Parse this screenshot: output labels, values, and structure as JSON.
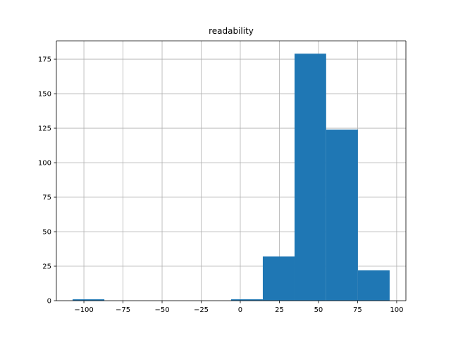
{
  "chart_data": {
    "type": "histogram",
    "title": "readability",
    "bins": [
      -107.2,
      -86.9,
      -66.7,
      -46.4,
      -26.1,
      -5.9,
      14.4,
      34.7,
      54.9,
      75.2,
      95.5
    ],
    "values": [
      1,
      0,
      0,
      0,
      0,
      1,
      32,
      179,
      124,
      22
    ],
    "color": "#1f77b4",
    "xlim": [
      -117.6,
      105.9
    ],
    "xticks": [
      {
        "value": -100,
        "label": "−100"
      },
      {
        "value": -75,
        "label": "−75"
      },
      {
        "value": -50,
        "label": "−50"
      },
      {
        "value": -25,
        "label": "−25"
      },
      0,
      25,
      50,
      75,
      100
    ],
    "ylim": [
      0,
      188.3
    ],
    "yticks": [
      0,
      25,
      50,
      75,
      100,
      125,
      150,
      175
    ],
    "grid": true
  }
}
